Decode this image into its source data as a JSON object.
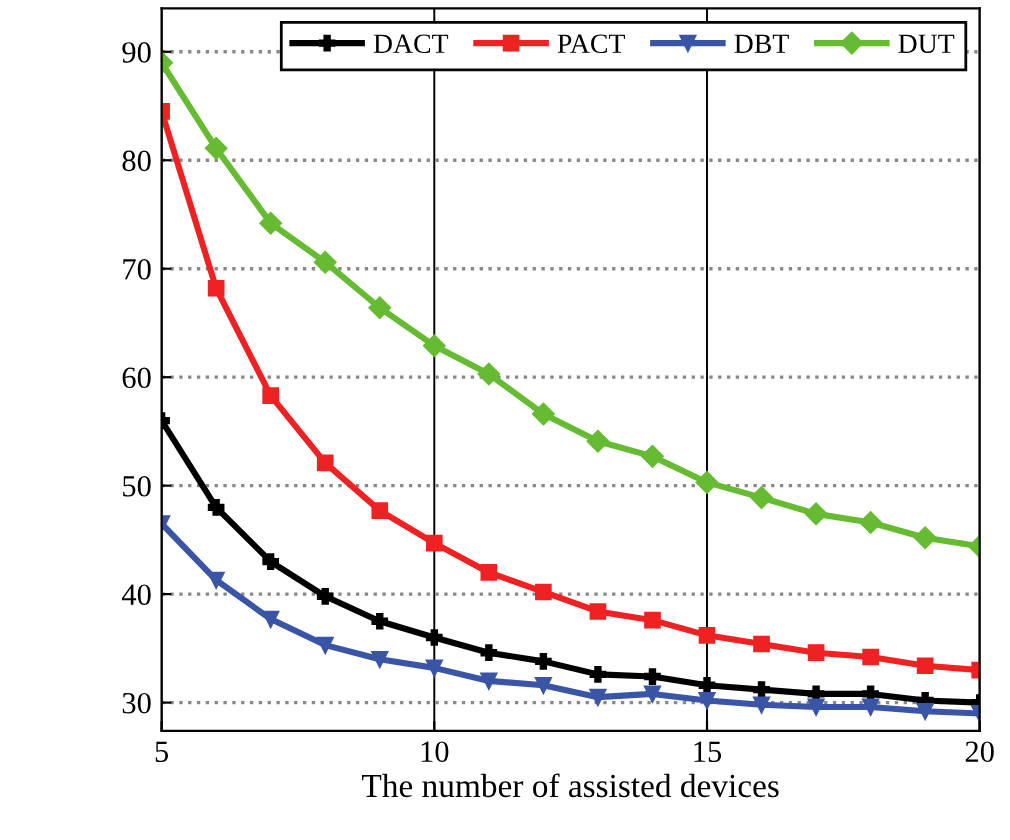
{
  "chart_data": {
    "type": "line",
    "xlabel": "The number of assisted devices",
    "x": [
      5,
      6,
      7,
      8,
      9,
      10,
      11,
      12,
      13,
      14,
      15,
      16,
      17,
      18,
      19,
      20
    ],
    "series": [
      {
        "name": "DACT",
        "color": "#000000",
        "marker": "cross",
        "values": [
          56,
          48,
          43,
          39.8,
          37.5,
          36,
          34.6,
          33.8,
          32.6,
          32.4,
          31.6,
          31.2,
          30.8,
          30.8,
          30.2,
          30
        ]
      },
      {
        "name": "PACT",
        "color": "#ee2222",
        "marker": "square",
        "values": [
          84.5,
          68.2,
          58.3,
          52.1,
          47.7,
          44.7,
          42,
          40.2,
          38.4,
          37.6,
          36.2,
          35.4,
          34.6,
          34.2,
          33.4,
          33
        ]
      },
      {
        "name": "DBT",
        "color": "#3a55a5",
        "marker": "triangle",
        "values": [
          46.5,
          41.3,
          37.7,
          35.3,
          34,
          33.2,
          32,
          31.6,
          30.5,
          30.8,
          30.2,
          29.8,
          29.6,
          29.6,
          29.2,
          29
        ]
      },
      {
        "name": "DUT",
        "color": "#66bb33",
        "marker": "diamond",
        "values": [
          89,
          81.1,
          74.2,
          70.6,
          66.4,
          62.9,
          60.3,
          56.6,
          54.1,
          52.7,
          50.3,
          48.9,
          47.4,
          46.6,
          45.2,
          44.4
        ]
      }
    ],
    "xlim": [
      5,
      20
    ],
    "xticks": [
      5,
      10,
      15,
      20
    ],
    "ylim": [
      27.4,
      94
    ],
    "yticks": [
      30,
      40,
      50,
      60,
      70,
      80,
      90
    ],
    "grid": true,
    "legend": "top right",
    "line_style": "solid"
  }
}
